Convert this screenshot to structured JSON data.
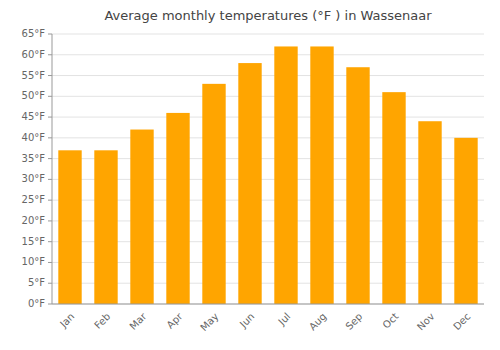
{
  "chart_data": {
    "type": "bar",
    "title": "Average monthly temperatures (°F ) in Wassenaar",
    "categories": [
      "Jan",
      "Feb",
      "Mar",
      "Apr",
      "May",
      "Jun",
      "Jul",
      "Aug",
      "Sep",
      "Oct",
      "Nov",
      "Dec"
    ],
    "values": [
      37,
      37,
      42,
      46,
      53,
      58,
      62,
      62,
      57,
      51,
      44,
      40
    ],
    "color": "#FFA500",
    "ylim": [
      0,
      65
    ],
    "yticks": [
      {
        "value": 0,
        "label": "0°F"
      },
      {
        "value": 5,
        "label": "5°F"
      },
      {
        "value": 10,
        "label": "10°F"
      },
      {
        "value": 15,
        "label": "15°F"
      },
      {
        "value": 20,
        "label": "20°F"
      },
      {
        "value": 25,
        "label": "25°F"
      },
      {
        "value": 30,
        "label": "30°F"
      },
      {
        "value": 35,
        "label": "35°F"
      },
      {
        "value": 40,
        "label": "40°F"
      },
      {
        "value": 45,
        "label": "45°F"
      },
      {
        "value": 50,
        "label": "50°F"
      },
      {
        "value": 55,
        "label": "55°F"
      },
      {
        "value": 60,
        "label": "60°F"
      },
      {
        "value": 65,
        "label": "65°F"
      }
    ],
    "grid": true
  }
}
